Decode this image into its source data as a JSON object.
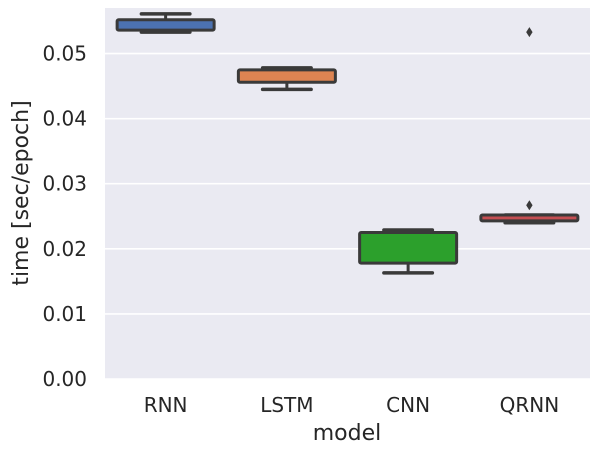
{
  "chart_data": {
    "type": "box",
    "title": "",
    "xlabel": "model",
    "ylabel": "time [sec/epoch]",
    "ylim": [
      0.0,
      0.057
    ],
    "yticks": [
      "0.00",
      "0.01",
      "0.02",
      "0.03",
      "0.04",
      "0.05"
    ],
    "grid": true,
    "categories": [
      "RNN",
      "LSTM",
      "CNN",
      "QRNN"
    ],
    "boxes": [
      {
        "name": "RNN",
        "whisker_low": 0.0533,
        "q1": 0.0536,
        "median": 0.0541,
        "q3": 0.0552,
        "whisker_high": 0.0561,
        "outliers": [],
        "color": "#4c72b0"
      },
      {
        "name": "LSTM",
        "whisker_low": 0.0445,
        "q1": 0.0456,
        "median": 0.0462,
        "q3": 0.0475,
        "whisker_high": 0.0478,
        "outliers": [],
        "color": "#dd8452"
      },
      {
        "name": "CNN",
        "whisker_low": 0.0163,
        "q1": 0.0178,
        "median": 0.0215,
        "q3": 0.0225,
        "whisker_high": 0.0229,
        "outliers": [],
        "color": "#2ca02c"
      },
      {
        "name": "QRNN",
        "whisker_low": 0.024,
        "q1": 0.0243,
        "median": 0.0248,
        "q3": 0.0252,
        "whisker_high": 0.0252,
        "outliers": [
          0.0267,
          0.0533
        ],
        "color": "#c44e52"
      }
    ]
  }
}
